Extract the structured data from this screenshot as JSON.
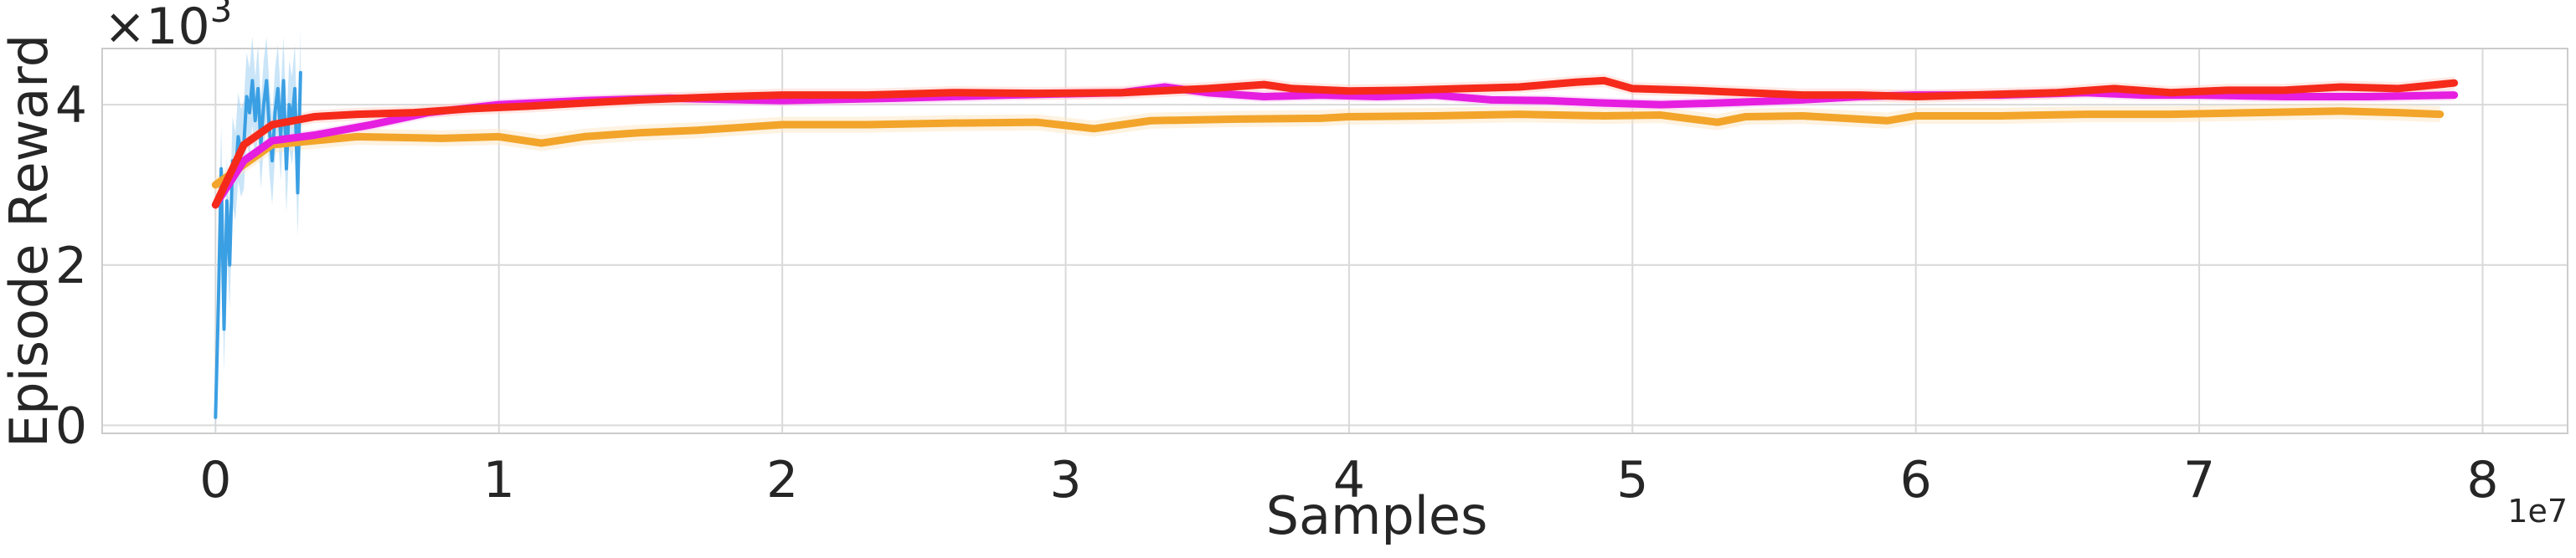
{
  "chart_data": {
    "type": "line",
    "title": "",
    "xlabel": "Samples",
    "ylabel": "Episode Reward",
    "x_scale_label": "1e7",
    "y_scale_label_base": "×10",
    "y_scale_label_exp": "3",
    "xlim": [
      -0.4,
      8.3
    ],
    "ylim": [
      -0.1,
      4.7
    ],
    "x_ticks": [
      0,
      1,
      2,
      3,
      4,
      5,
      6,
      7,
      8
    ],
    "x_tick_labels": [
      "0",
      "1",
      "2",
      "3",
      "4",
      "5",
      "6",
      "7",
      "8"
    ],
    "y_ticks": [
      0,
      2,
      4
    ],
    "y_tick_labels": [
      "0",
      "2",
      "4"
    ],
    "grid": true,
    "legend": "none",
    "series": [
      {
        "color": "#f52a1b",
        "band": "#fdd3cc",
        "x": [
          0,
          0.1,
          0.2,
          0.35,
          0.5,
          0.7,
          0.9,
          1.1,
          1.3,
          1.5,
          1.8,
          2.0,
          2.3,
          2.6,
          2.9,
          3.2,
          3.5,
          3.7,
          3.8,
          4.0,
          4.2,
          4.4,
          4.6,
          4.8,
          4.9,
          5.0,
          5.2,
          5.4,
          5.6,
          5.8,
          6.0,
          6.2,
          6.5,
          6.7,
          6.9,
          7.1,
          7.3,
          7.5,
          7.7,
          7.9
        ],
        "y": [
          2.75,
          3.5,
          3.75,
          3.85,
          3.88,
          3.9,
          3.95,
          3.98,
          4.02,
          4.06,
          4.1,
          4.12,
          4.12,
          4.15,
          4.14,
          4.15,
          4.2,
          4.25,
          4.2,
          4.17,
          4.18,
          4.2,
          4.22,
          4.28,
          4.3,
          4.2,
          4.18,
          4.15,
          4.12,
          4.12,
          4.1,
          4.12,
          4.15,
          4.2,
          4.15,
          4.18,
          4.18,
          4.22,
          4.2,
          4.27
        ],
        "spread": 0.08
      },
      {
        "color": "#f2a52a",
        "band": "#fde6c3",
        "x": [
          0,
          0.2,
          0.5,
          0.8,
          1.0,
          1.15,
          1.3,
          1.5,
          1.7,
          2.0,
          2.3,
          2.6,
          2.9,
          3.1,
          3.3,
          3.6,
          3.9,
          4.0,
          4.3,
          4.6,
          4.9,
          5.1,
          5.3,
          5.4,
          5.6,
          5.8,
          5.9,
          6.0,
          6.3,
          6.6,
          6.9,
          7.2,
          7.5,
          7.7,
          7.85
        ],
        "y": [
          3.0,
          3.5,
          3.6,
          3.58,
          3.6,
          3.52,
          3.6,
          3.65,
          3.68,
          3.75,
          3.75,
          3.77,
          3.78,
          3.7,
          3.8,
          3.82,
          3.83,
          3.85,
          3.86,
          3.88,
          3.86,
          3.87,
          3.78,
          3.85,
          3.86,
          3.82,
          3.8,
          3.86,
          3.86,
          3.88,
          3.88,
          3.9,
          3.92,
          3.9,
          3.88
        ],
        "spread": 0.1
      },
      {
        "color": "#e61ee0",
        "band": "#f9c8f5",
        "x": [
          0,
          0.1,
          0.2,
          0.35,
          0.55,
          0.75,
          1.0,
          1.3,
          1.6,
          2.0,
          2.4,
          2.8,
          3.2,
          3.35,
          3.5,
          3.7,
          3.9,
          4.1,
          4.3,
          4.5,
          4.7,
          4.9,
          5.1,
          5.3,
          5.6,
          5.8,
          6.0,
          6.3,
          6.6,
          6.8,
          7.0,
          7.3,
          7.6,
          7.9
        ],
        "y": [
          2.75,
          3.3,
          3.55,
          3.62,
          3.75,
          3.9,
          4.0,
          4.05,
          4.08,
          4.05,
          4.08,
          4.12,
          4.15,
          4.22,
          4.15,
          4.1,
          4.12,
          4.1,
          4.12,
          4.06,
          4.05,
          4.02,
          4.0,
          4.02,
          4.06,
          4.1,
          4.12,
          4.12,
          4.15,
          4.12,
          4.12,
          4.1,
          4.1,
          4.12
        ],
        "spread": 0.07
      },
      {
        "color": "#3a9fe3",
        "band": "#9fd0f2",
        "x": [
          0,
          0.01,
          0.02,
          0.03,
          0.04,
          0.05,
          0.06,
          0.07,
          0.08,
          0.09,
          0.1,
          0.11,
          0.12,
          0.13,
          0.14,
          0.15,
          0.16,
          0.17,
          0.18,
          0.19,
          0.2,
          0.21,
          0.22,
          0.23,
          0.24,
          0.25,
          0.26,
          0.27,
          0.28,
          0.29,
          0.3
        ],
        "y": [
          0.1,
          1.5,
          3.2,
          1.2,
          2.8,
          2.0,
          3.3,
          3.1,
          3.6,
          3.4,
          3.5,
          4.1,
          3.9,
          4.3,
          3.8,
          4.2,
          3.5,
          4.0,
          4.3,
          3.7,
          3.3,
          3.9,
          4.2,
          3.6,
          4.3,
          3.2,
          4.0,
          3.8,
          4.2,
          2.9,
          4.4
        ],
        "spread": 0.55
      }
    ]
  }
}
